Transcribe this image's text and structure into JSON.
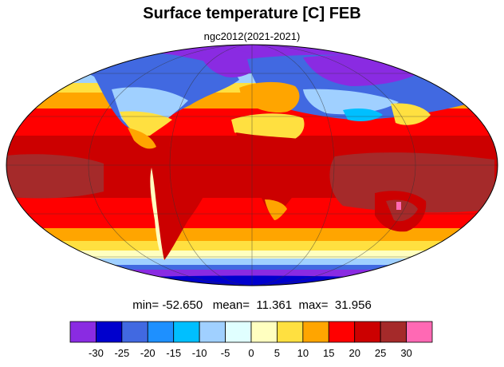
{
  "title": "Surface temperature [C] FEB",
  "subtitle": "ngc2012(2021-2021)",
  "stats": {
    "min_label": "min=",
    "min_value": "-52.650",
    "mean_label": "mean=",
    "mean_value": "11.361",
    "max_label": "max=",
    "max_value": "31.956"
  },
  "colorbar": {
    "tick_labels": [
      "-30",
      "-25",
      "-20",
      "-15",
      "-10",
      "-5",
      "0",
      "5",
      "10",
      "15",
      "20",
      "25",
      "30"
    ],
    "colors": [
      "#8a2be2",
      "#0000cd",
      "#4169e1",
      "#1e90ff",
      "#00bfff",
      "#a0d0ff",
      "#e0ffff",
      "#ffffc0",
      "#ffe040",
      "#ffa500",
      "#ff0000",
      "#cc0000",
      "#a52a2a",
      "#ff69b4"
    ]
  },
  "map": {
    "projection": "Mollweide",
    "field_colors": {
      "polar_violet": "#8a2be2",
      "deep_blue": "#0000cd",
      "blue": "#4169e1",
      "sky": "#00bfff",
      "light_blue": "#a0d0ff",
      "pale": "#e0ffff",
      "cream": "#ffffc0",
      "yellow": "#ffe040",
      "orange": "#ffa500",
      "red": "#ff0000",
      "dark_red": "#cc0000",
      "brown": "#a52a2a",
      "pink": "#ff69b4"
    }
  }
}
